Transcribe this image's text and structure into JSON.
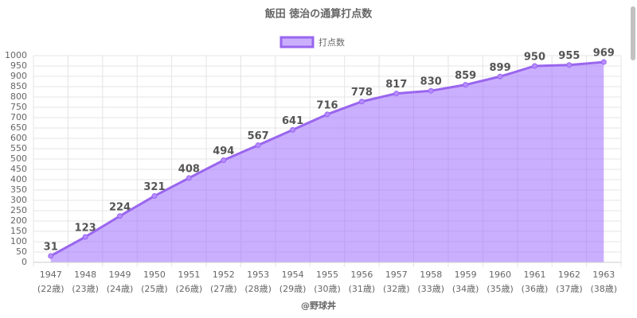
{
  "chart_data": {
    "type": "area",
    "title": "飯田 徳治の通算打点数",
    "footer": "@野球丼",
    "categories": [
      [
        "1947",
        "(22歳)"
      ],
      [
        "1948",
        "(23歳)"
      ],
      [
        "1949",
        "(24歳)"
      ],
      [
        "1950",
        "(25歳)"
      ],
      [
        "1951",
        "(26歳)"
      ],
      [
        "1952",
        "(27歳)"
      ],
      [
        "1953",
        "(28歳)"
      ],
      [
        "1954",
        "(29歳)"
      ],
      [
        "1955",
        "(30歳)"
      ],
      [
        "1956",
        "(31歳)"
      ],
      [
        "1957",
        "(32歳)"
      ],
      [
        "1958",
        "(33歳)"
      ],
      [
        "1959",
        "(34歳)"
      ],
      [
        "1960",
        "(35歳)"
      ],
      [
        "1961",
        "(36歳)"
      ],
      [
        "1962",
        "(37歳)"
      ],
      [
        "1963",
        "(38歳)"
      ]
    ],
    "series": [
      {
        "name": "打点数",
        "color": "#9966ee",
        "fill": "rgba(160,110,255,0.55)",
        "values": [
          31,
          123,
          224,
          321,
          408,
          494,
          567,
          641,
          716,
          778,
          817,
          830,
          859,
          899,
          950,
          955,
          969
        ]
      }
    ],
    "ylim": [
      0,
      1000
    ],
    "yticks": [
      0,
      50,
      100,
      150,
      200,
      250,
      300,
      350,
      400,
      450,
      500,
      550,
      600,
      650,
      700,
      750,
      800,
      850,
      900,
      950,
      1000
    ],
    "grid": true,
    "legend": "top"
  }
}
